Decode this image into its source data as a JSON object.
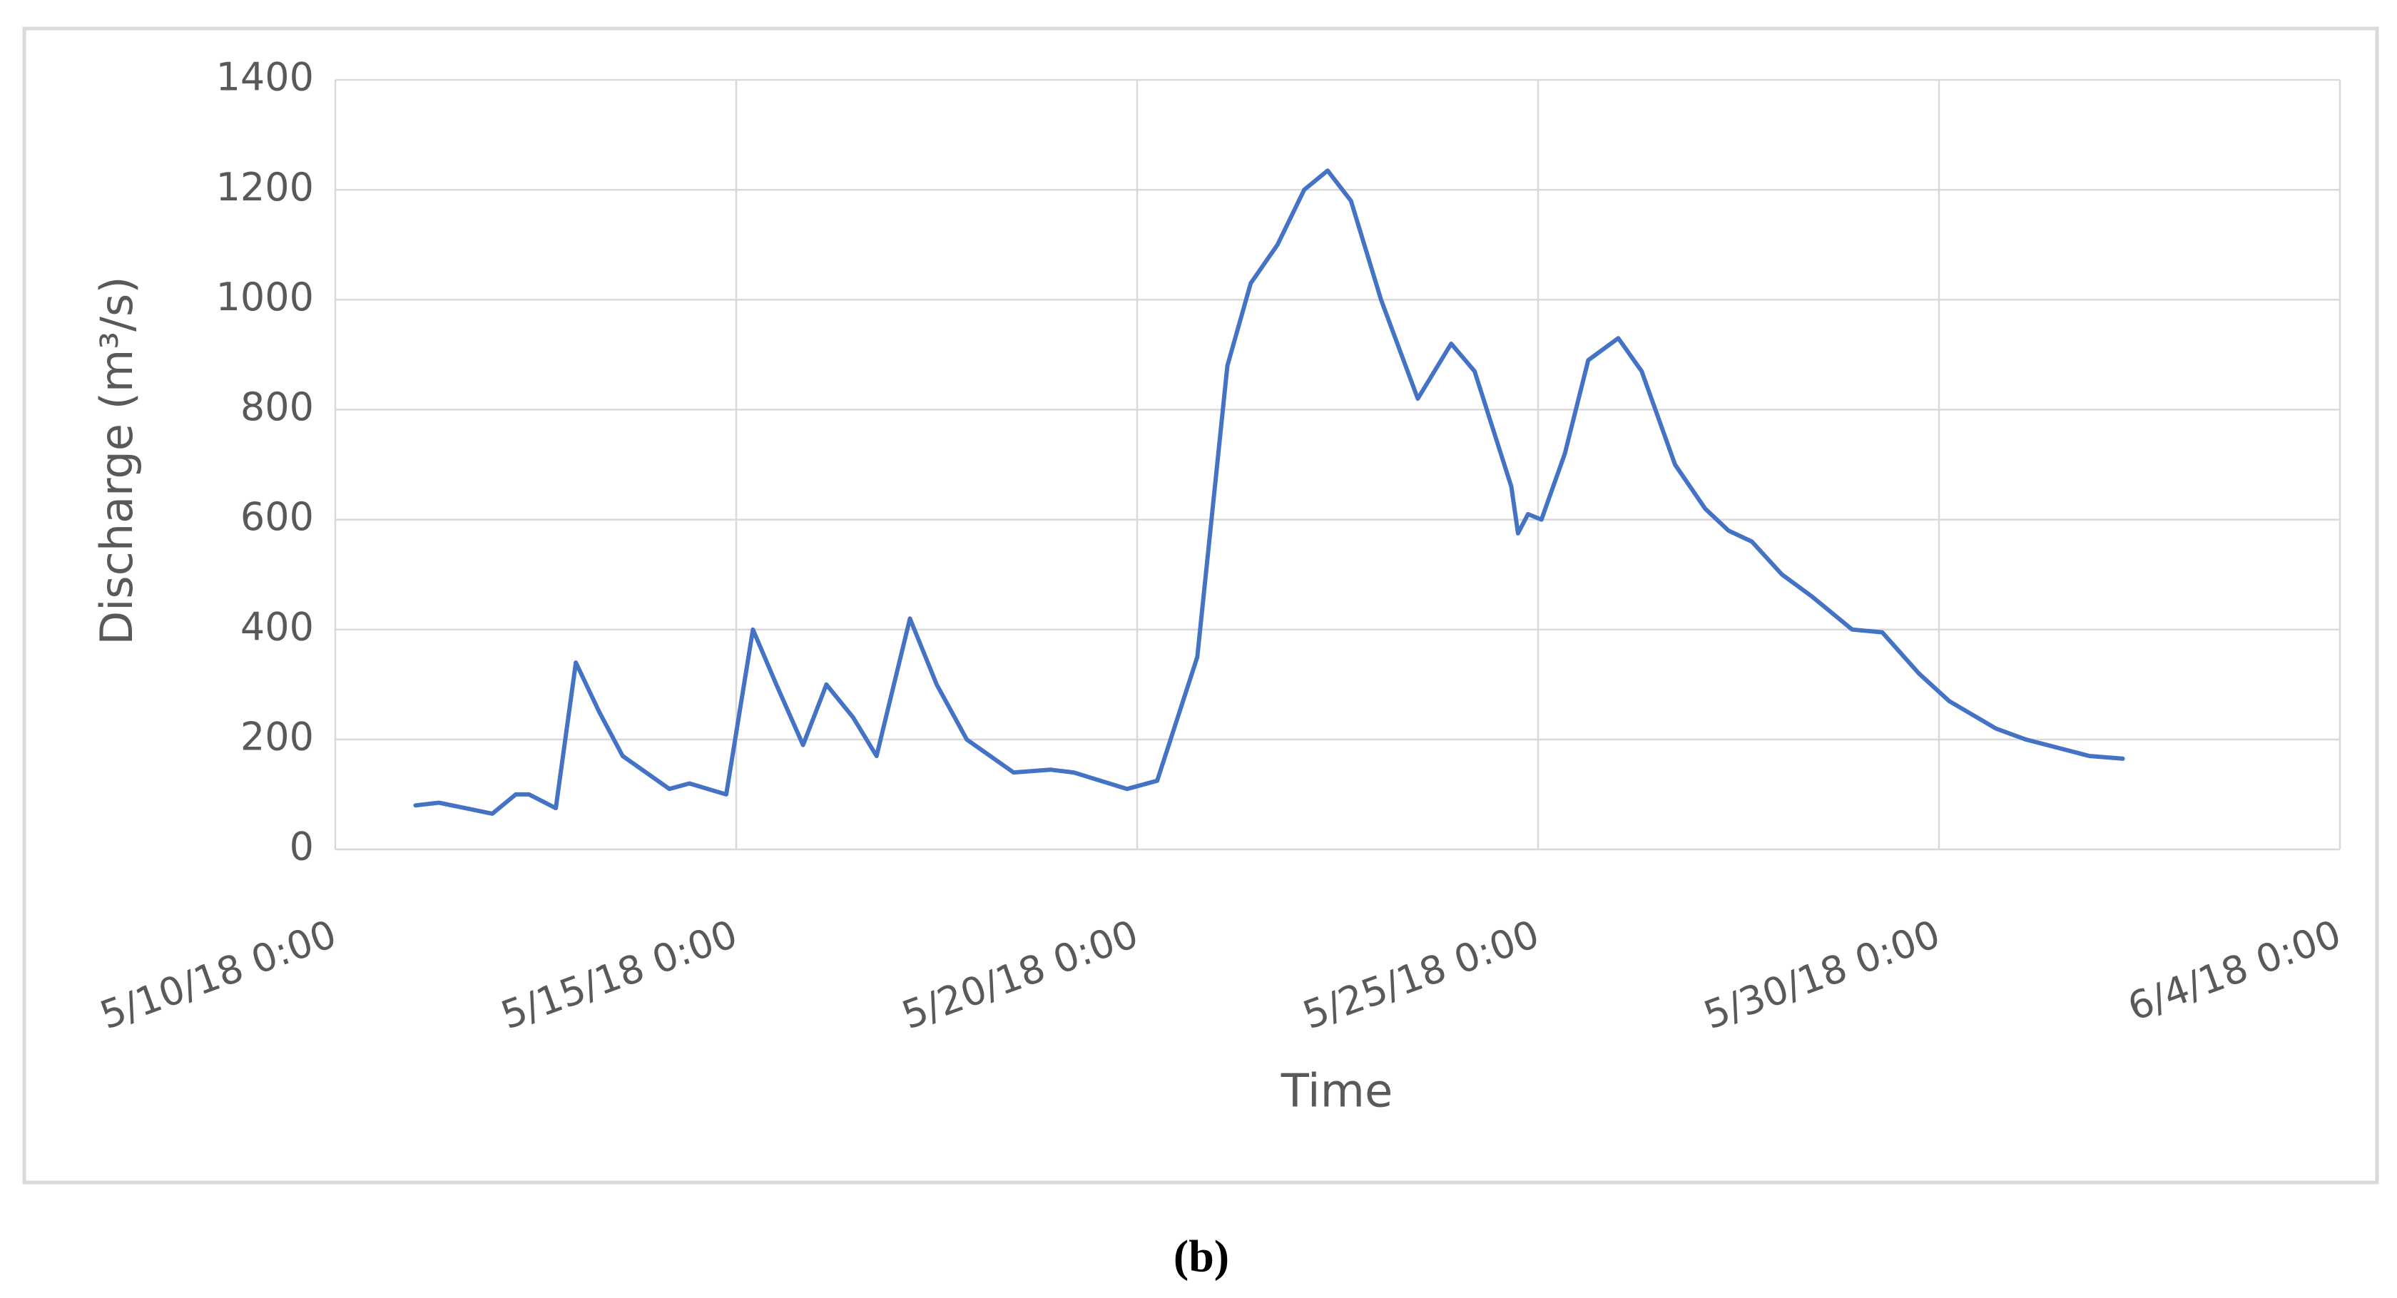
{
  "chart_data": {
    "type": "line",
    "x_label": "Time",
    "y_label": "Discharge (m³/s)",
    "x": [
      "5/11/18 0:00",
      "5/11/18 7:00",
      "5/11/18 23:00",
      "5/12/18 6:00",
      "5/12/18 10:00",
      "5/12/18 18:00",
      "5/13/18 0:00",
      "5/13/18 7:00",
      "5/13/18 14:00",
      "5/14/18 4:00",
      "5/14/18 10:00",
      "5/14/18 21:00",
      "5/15/18 5:00",
      "5/15/18 12:00",
      "5/15/18 20:00",
      "5/16/18 3:00",
      "5/16/18 11:00",
      "5/16/18 18:00",
      "5/17/18 4:00",
      "5/17/18 12:00",
      "5/17/18 21:00",
      "5/18/18 11:00",
      "5/18/18 22:00",
      "5/19/18 5:00",
      "5/19/18 21:00",
      "5/20/18 6:00",
      "5/20/18 18:00",
      "5/21/18 3:00",
      "5/21/18 10:00",
      "5/21/18 18:00",
      "5/22/18 2:00",
      "5/22/18 9:00",
      "5/22/18 16:00",
      "5/23/18 1:00",
      "5/23/18 12:00",
      "5/23/18 22:00",
      "5/24/18 5:00",
      "5/24/18 16:00",
      "5/24/18 18:00",
      "5/24/18 21:00",
      "5/25/18 1:00",
      "5/25/18 8:00",
      "5/25/18 15:00",
      "5/26/18 0:00",
      "5/26/18 7:00",
      "5/26/18 17:00",
      "5/27/18 2:00",
      "5/27/18 9:00",
      "5/27/18 16:00",
      "5/28/18 1:00",
      "5/28/18 10:00",
      "5/28/18 22:00",
      "5/29/18 7:00",
      "5/29/18 18:00",
      "5/30/18 3:00",
      "5/30/18 17:00",
      "5/31/18 2:00",
      "5/31/18 21:00",
      "6/1/18 7:00"
    ],
    "values": [
      80,
      85,
      65,
      100,
      100,
      75,
      340,
      250,
      170,
      110,
      120,
      100,
      400,
      300,
      190,
      300,
      240,
      170,
      420,
      300,
      200,
      140,
      145,
      140,
      110,
      125,
      350,
      880,
      1030,
      1100,
      1200,
      1235,
      1180,
      1000,
      820,
      920,
      870,
      660,
      575,
      610,
      600,
      720,
      890,
      930,
      870,
      700,
      620,
      580,
      560,
      500,
      460,
      400,
      395,
      320,
      270,
      220,
      200,
      170,
      165
    ],
    "color": "#4472c4",
    "xlim": [
      "5/10/18 0:00",
      "6/4/18 0:00"
    ],
    "xticks": [
      "5/10/18 0:00",
      "5/15/18 0:00",
      "5/20/18 0:00",
      "5/25/18 0:00",
      "5/30/18 0:00",
      "6/4/18 0:00"
    ],
    "ylim": [
      0,
      1400
    ],
    "yticks": [
      0,
      200,
      400,
      600,
      800,
      1000,
      1200,
      1400
    ],
    "grid": true
  },
  "caption": "(b)"
}
